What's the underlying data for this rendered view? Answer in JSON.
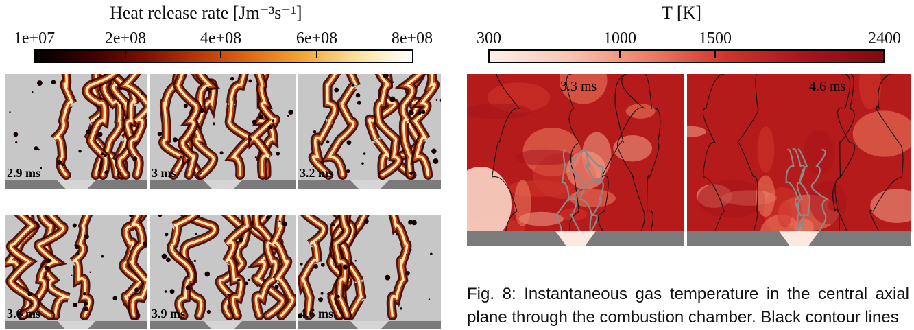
{
  "hrr_colorbar": {
    "title": "Heat release rate  [Jm⁻³s⁻¹]",
    "ticks": [
      "1e+07",
      "2e+08",
      "4e+08",
      "6e+08",
      "8e+08"
    ]
  },
  "temp_colorbar": {
    "title": "T  [K]",
    "ticks": [
      "300",
      "1000",
      "1500",
      "2400"
    ]
  },
  "hrr_panels": [
    {
      "time": "2.9 ms"
    },
    {
      "time": "3 ms"
    },
    {
      "time": "3.2 ms"
    },
    {
      "time": "3.6 ms"
    },
    {
      "time": "3.9 ms"
    },
    {
      "time": "4.6 ms"
    }
  ],
  "temp_panels": [
    {
      "time": "3.3 ms"
    },
    {
      "time": "4.6 ms"
    }
  ],
  "caption": {
    "text": "Fig. 8: Instantaneous gas temperature in the central axial plane through the combustion chamber. Black contour lines"
  },
  "colors": {
    "hrr_gradient": [
      "#000000",
      "#3b0000",
      "#7a0f00",
      "#b8350a",
      "#e06a12",
      "#f4a83a",
      "#fbe3a0",
      "#ffffff"
    ],
    "temp_gradient": [
      "#fdf0ea",
      "#f9c6b2",
      "#ee7f66",
      "#d0342c",
      "#a8141c",
      "#800a10"
    ],
    "panel_bg": "#c7c7c7",
    "wall": "#7b7b7b",
    "nozzle": "#d5d5d5",
    "temp_bg": "#b51b1a",
    "temp_contour_black": "#111111",
    "temp_contour_gray": "#8a8a8a"
  }
}
